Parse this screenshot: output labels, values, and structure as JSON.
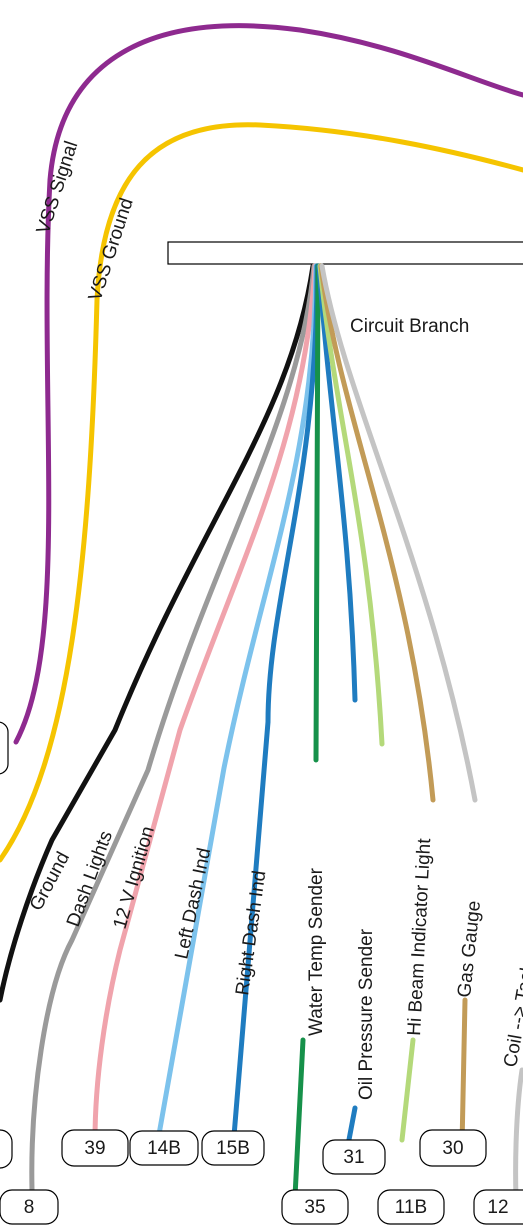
{
  "branch": {
    "label": "Circuit Branch"
  },
  "wires": [
    {
      "id": "vss-signal",
      "label": "VSS Signal",
      "color": "#8e2a8f"
    },
    {
      "id": "vss-ground",
      "label": "VSS Ground",
      "color": "#f5c400"
    },
    {
      "id": "ground",
      "label": "Ground",
      "color": "#111111"
    },
    {
      "id": "dash-lights",
      "label": "Dash Lights",
      "color": "#9a9a9a"
    },
    {
      "id": "ignition",
      "label": "12 V Ignition",
      "color": "#f0a3ac"
    },
    {
      "id": "left-dash",
      "label": "Left Dash Ind",
      "color": "#7cc2ec"
    },
    {
      "id": "right-dash",
      "label": "Right Dash Ind",
      "color": "#1f7cc0"
    },
    {
      "id": "water-temp",
      "label": "Water Temp Sender",
      "color": "#16914a"
    },
    {
      "id": "oil-pressure",
      "label": "Oil Pressure Sender",
      "color": "#1f7cc0"
    },
    {
      "id": "hi-beam",
      "label": "Hi Beam Indicator Light",
      "color": "#b4d97a"
    },
    {
      "id": "gas-gauge",
      "label": "Gas Gauge",
      "color": "#c29b57"
    },
    {
      "id": "tach",
      "label": "Coil --> Tach",
      "color": "#c4c4c4"
    }
  ],
  "pins": [
    {
      "id": "ground",
      "label": ""
    },
    {
      "id": "dash-lights",
      "label": "8"
    },
    {
      "id": "ignition",
      "label": "39"
    },
    {
      "id": "left-dash",
      "label": "14B"
    },
    {
      "id": "right-dash",
      "label": "15B"
    },
    {
      "id": "water-temp",
      "label": "35"
    },
    {
      "id": "oil-pressure",
      "label": "31"
    },
    {
      "id": "hi-beam",
      "label": "11B"
    },
    {
      "id": "gas-gauge",
      "label": "30"
    },
    {
      "id": "tach",
      "label": "12"
    },
    {
      "id": "vss-signal",
      "label": ""
    }
  ]
}
